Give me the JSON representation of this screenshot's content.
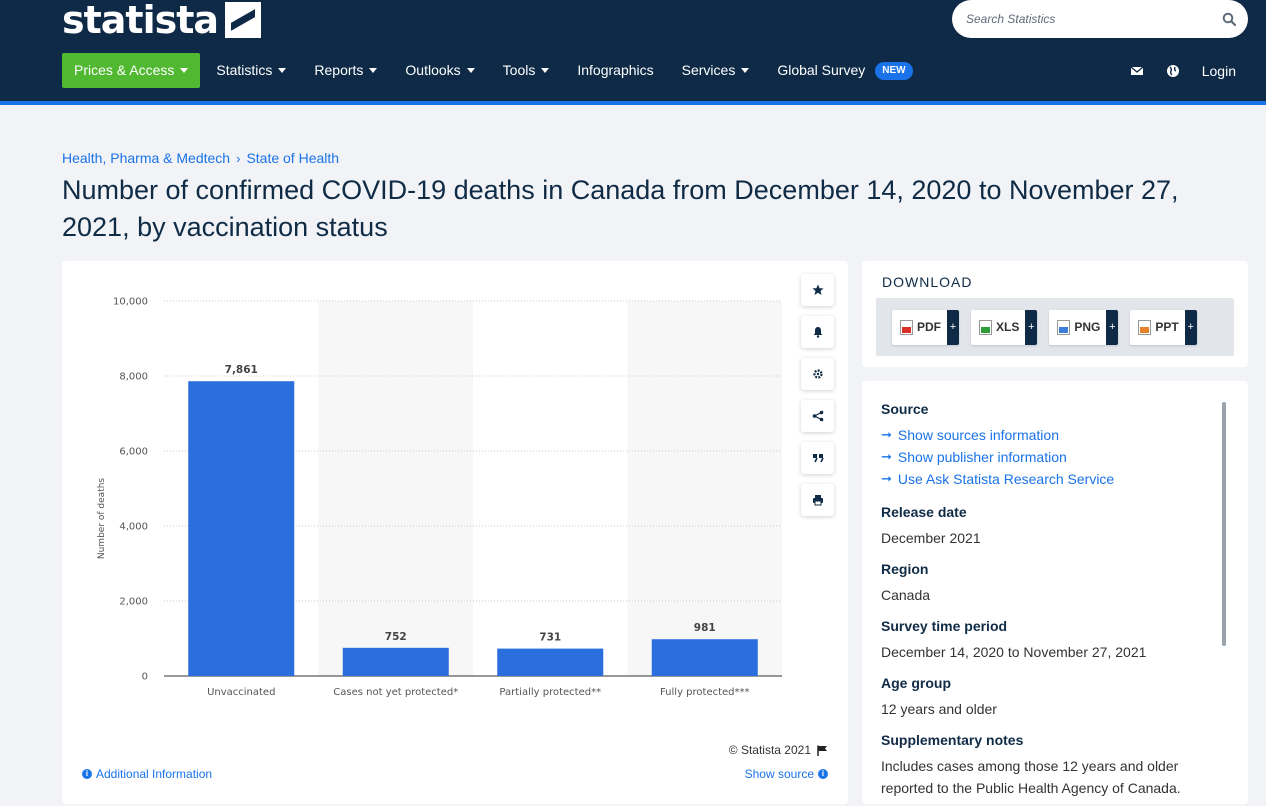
{
  "header": {
    "logo_text": "statista",
    "search_placeholder": "Search Statistics",
    "nav": [
      {
        "label": "Prices & Access",
        "caret": true
      },
      {
        "label": "Statistics",
        "caret": true
      },
      {
        "label": "Reports",
        "caret": true
      },
      {
        "label": "Outlooks",
        "caret": true
      },
      {
        "label": "Tools",
        "caret": true
      },
      {
        "label": "Infographics",
        "caret": false
      },
      {
        "label": "Services",
        "caret": true
      },
      {
        "label": "Global Survey",
        "caret": false
      }
    ],
    "new_badge": "NEW",
    "login": "Login"
  },
  "breadcrumb": [
    "Health, Pharma & Medtech",
    "State of Health"
  ],
  "breadcrumb_sep": "›",
  "title": "Number of confirmed COVID-19 deaths in Canada from December 14, 2020 to November 27, 2021, by vaccination status",
  "chart_data": {
    "type": "bar",
    "categories": [
      "Unvaccinated",
      "Cases not yet protected*",
      "Partially protected**",
      "Fully protected***"
    ],
    "values": [
      7861,
      752,
      731,
      981
    ],
    "value_labels": [
      "7,861",
      "752",
      "731",
      "981"
    ],
    "ylabel": "Number of deaths",
    "ylim": [
      0,
      10000
    ],
    "yticks": [
      0,
      2000,
      4000,
      6000,
      8000,
      10000
    ],
    "ytick_labels": [
      "0",
      "2,000",
      "4,000",
      "6,000",
      "8,000",
      "10,000"
    ],
    "bar_color": "#2b6fde",
    "grid": true
  },
  "chart_footer": {
    "copyright": "© Statista 2021",
    "additional_info": "Additional Information",
    "show_source": "Show source"
  },
  "download": {
    "title": "DOWNLOAD",
    "buttons": [
      {
        "label": "PDF",
        "color": "#d93025"
      },
      {
        "label": "XLS",
        "color": "#2e9e3a"
      },
      {
        "label": "PNG",
        "color": "#3b7dd8"
      },
      {
        "label": "PPT",
        "color": "#e8822a"
      }
    ],
    "plus": "+"
  },
  "details": {
    "source_label": "Source",
    "source_links": [
      "Show sources information",
      "Show publisher information",
      "Use Ask Statista Research Service"
    ],
    "release_label": "Release date",
    "release_value": "December 2021",
    "region_label": "Region",
    "region_value": "Canada",
    "period_label": "Survey time period",
    "period_value": "December 14, 2020 to November 27, 2021",
    "age_label": "Age group",
    "age_value": "12 years and older",
    "notes_label": "Supplementary notes",
    "notes_value": "Includes cases among those 12 years and older reported to the Public Health Agency of Canada."
  }
}
